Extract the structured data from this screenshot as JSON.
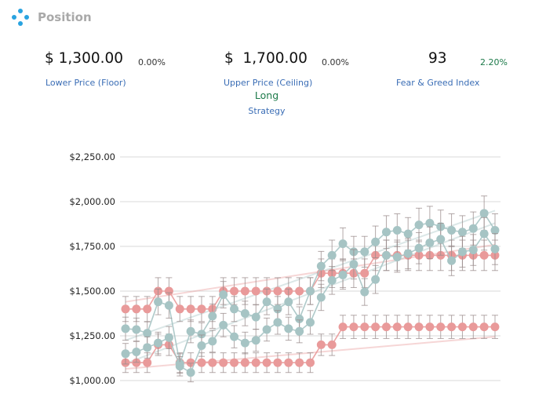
{
  "header": {
    "title": "Position",
    "logo_icon": "four-dots-diamond-icon"
  },
  "metrics": {
    "lower": {
      "value": "$ 1,300.00",
      "change": "0.00%",
      "label": "Lower Price (Floor)"
    },
    "upper": {
      "value": "$  1,700.00",
      "change": "0.00%",
      "label": "Upper Price (Ceiling)"
    },
    "fear_greed": {
      "value": "93",
      "change": "2.20%",
      "label": "Fear & Greed Index"
    }
  },
  "strategy": {
    "value": "Long",
    "label": "Strategy"
  },
  "colors": {
    "floor_ceiling_series": "#e99a9a",
    "price_series": "#a6c4c4",
    "green": "#1d7a4a",
    "link": "#3a6db5"
  },
  "chart_data": {
    "type": "line",
    "title": "",
    "xlabel": "",
    "ylabel": "",
    "ylim": [
      1000,
      2250
    ],
    "yticks": [
      1000,
      1250,
      1500,
      1750,
      2000,
      2250
    ],
    "ytick_labels": [
      "$1,000.00",
      "$1,250.00",
      "$1,500.00",
      "$1,750.00",
      "$2,000.00",
      "$2,250.00"
    ],
    "grid": true,
    "error_bar_fraction": 0.05,
    "series": [
      {
        "role": "ceiling",
        "color": "#e99a9a",
        "values": [
          1400,
          1400,
          1400,
          1500,
          1500,
          1400,
          1400,
          1400,
          1400,
          1500,
          1500,
          1500,
          1500,
          1500,
          1500,
          1500,
          1500,
          1500,
          1600,
          1600,
          1600,
          1600,
          1600,
          1700,
          1700,
          1700,
          1700,
          1700,
          1700,
          1700,
          1700,
          1700,
          1700,
          1700,
          1700
        ]
      },
      {
        "role": "floor",
        "color": "#e99a9a",
        "values": [
          1100,
          1100,
          1100,
          1200,
          1200,
          1100,
          1100,
          1100,
          1100,
          1100,
          1100,
          1100,
          1100,
          1100,
          1100,
          1100,
          1100,
          1100,
          1200,
          1200,
          1300,
          1300,
          1300,
          1300,
          1300,
          1300,
          1300,
          1300,
          1300,
          1300,
          1300,
          1300,
          1300,
          1300,
          1300
        ]
      },
      {
        "role": "price_high",
        "color": "#a6c4c4",
        "values": [
          1290,
          1285,
          1265,
          1440,
          1420,
          1095,
          1275,
          1260,
          1360,
          1480,
          1400,
          1375,
          1355,
          1440,
          1400,
          1440,
          1345,
          1500,
          1640,
          1700,
          1765,
          1720,
          1720,
          1775,
          1830,
          1840,
          1820,
          1870,
          1880,
          1860,
          1840,
          1830,
          1850,
          1935,
          1840
        ]
      },
      {
        "role": "price_low",
        "color": "#a6c4c4",
        "values": [
          1150,
          1160,
          1185,
          1210,
          1240,
          1080,
          1045,
          1195,
          1220,
          1310,
          1245,
          1210,
          1225,
          1285,
          1325,
          1290,
          1275,
          1325,
          1465,
          1560,
          1590,
          1650,
          1495,
          1565,
          1700,
          1690,
          1710,
          1740,
          1770,
          1790,
          1670,
          1720,
          1730,
          1820,
          1735
        ]
      }
    ],
    "trend_lines": [
      {
        "color": "#e99a9a",
        "from": [
          0,
          1440
        ],
        "to": [
          34,
          1760
        ]
      },
      {
        "color": "#e99a9a",
        "from": [
          0,
          1065
        ],
        "to": [
          34,
          1245
        ]
      },
      {
        "color": "#a6c4c4",
        "from": [
          0,
          1225
        ],
        "to": [
          34,
          1950
        ]
      },
      {
        "color": "#a6c4c4",
        "from": [
          0,
          1095
        ],
        "to": [
          34,
          1880
        ]
      }
    ]
  }
}
